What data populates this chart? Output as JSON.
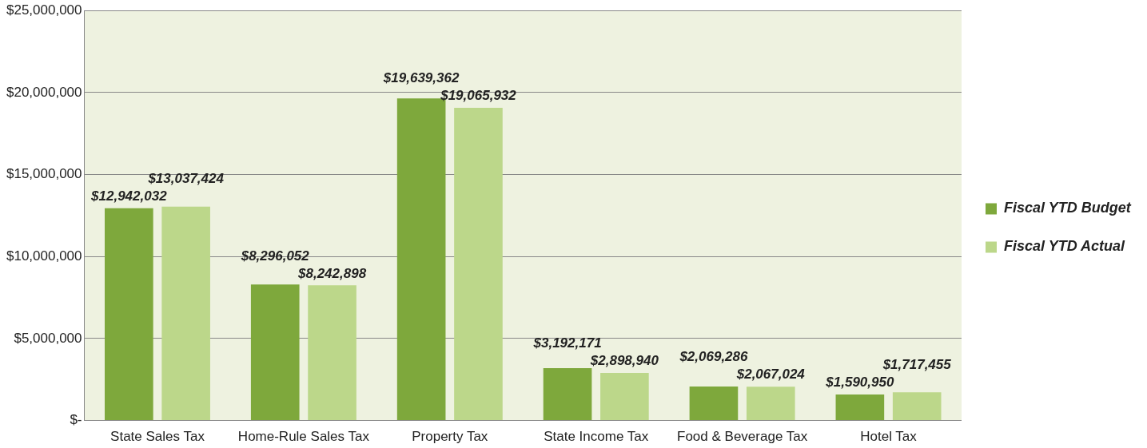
{
  "chart_data": {
    "type": "bar",
    "categories": [
      "State Sales Tax",
      "Home-Rule Sales Tax",
      "Property Tax",
      "State Income Tax",
      "Food & Beverage Tax",
      "Hotel Tax"
    ],
    "series": [
      {
        "name": "Fiscal YTD Budget",
        "color": "#7ea83c",
        "values": [
          12942032,
          8296052,
          19639362,
          3192171,
          2069286,
          1590950
        ],
        "value_labels": [
          "$12,942,032",
          "$8,296,052",
          "$19,639,362",
          "$3,192,171",
          "$2,069,286",
          "$1,590,950"
        ]
      },
      {
        "name": "Fiscal YTD Actual",
        "color": "#bcd78a",
        "values": [
          13037424,
          8242898,
          19065932,
          2898940,
          2067024,
          1717455
        ],
        "value_labels": [
          "$13,037,424",
          "$8,242,898",
          "$19,065,932",
          "$2,898,940",
          "$2,067,024",
          "$1,717,455"
        ]
      }
    ],
    "ylim": [
      0,
      25000000
    ],
    "yticks": [
      {
        "value": 0,
        "label": "$-"
      },
      {
        "value": 5000000,
        "label": "$5,000,000"
      },
      {
        "value": 10000000,
        "label": "$10,000,000"
      },
      {
        "value": 15000000,
        "label": "$15,000,000"
      },
      {
        "value": 20000000,
        "label": "$20,000,000"
      },
      {
        "value": 25000000,
        "label": "$25,000,000"
      }
    ],
    "grid": "y",
    "legend": "right"
  }
}
